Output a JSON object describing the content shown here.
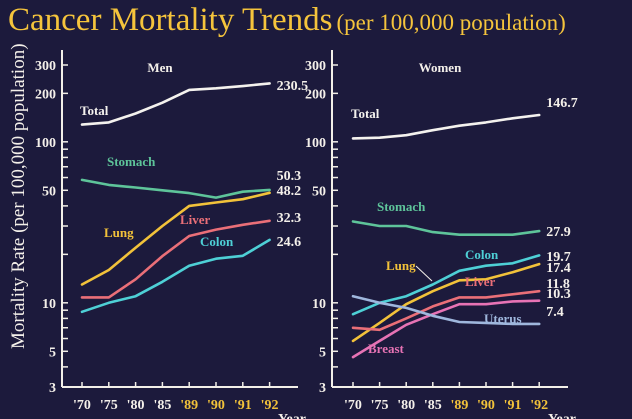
{
  "title": "Cancer Mortality Trends",
  "subtitle": "(per 100,000 population)",
  "chart_data": [
    {
      "type": "line",
      "title": "Men",
      "xlabel": "Year",
      "ylabel": "Mortality Rate (per 100,000 population)",
      "yscale": "log",
      "ylim": [
        3,
        300
      ],
      "yticks": [
        300,
        200,
        100,
        50,
        10,
        5,
        3
      ],
      "categories": [
        "'70",
        "'75",
        "'80",
        "'85",
        "'89",
        "'90",
        "'91",
        "'92"
      ],
      "highlight_categories": [
        "'89",
        "'90",
        "'91",
        "'92"
      ],
      "series": [
        {
          "name": "Total",
          "color": "#f4f2ee",
          "end_label": "230.5",
          "values": [
            128,
            132,
            150,
            175,
            210,
            215,
            222,
            230.5
          ]
        },
        {
          "name": "Stomach",
          "color": "#5ec49a",
          "end_label": "50.3",
          "values": [
            58,
            54,
            52,
            50,
            48,
            45,
            49,
            50.3
          ]
        },
        {
          "name": "Lung",
          "color": "#f2c23a",
          "end_label": "48.2",
          "values": [
            13,
            16,
            22,
            30,
            40,
            42,
            44,
            48.2
          ]
        },
        {
          "name": "Liver",
          "color": "#ea6f78",
          "end_label": "32.3",
          "values": [
            10.8,
            10.8,
            14,
            19.5,
            26,
            28.5,
            30.5,
            32.3
          ]
        },
        {
          "name": "Colon",
          "color": "#4ed0d6",
          "end_label": "24.6",
          "values": [
            8.8,
            10,
            11,
            13.5,
            17,
            18.8,
            19.6,
            24.6
          ]
        }
      ]
    },
    {
      "type": "line",
      "title": "Women",
      "xlabel": "Year",
      "ylabel": "Mortality Rate (per 100,000 population)",
      "yscale": "log",
      "ylim": [
        3,
        300
      ],
      "yticks": [
        300,
        200,
        100,
        50,
        10,
        5,
        3
      ],
      "categories": [
        "'70",
        "'75",
        "'80",
        "'85",
        "'89",
        "'90",
        "'91",
        "'92"
      ],
      "highlight_categories": [
        "'89",
        "'90",
        "'91",
        "'92"
      ],
      "series": [
        {
          "name": "Total",
          "color": "#f4f2ee",
          "end_label": "146.7",
          "values": [
            105,
            106,
            110,
            118,
            126,
            132,
            140,
            146.7
          ]
        },
        {
          "name": "Stomach",
          "color": "#5ec49a",
          "end_label": "27.9",
          "values": [
            32,
            30,
            30,
            27.5,
            26.5,
            26.5,
            26.5,
            27.9
          ]
        },
        {
          "name": "Colon",
          "color": "#4ed0d6",
          "end_label": "19.7",
          "values": [
            8.5,
            10,
            11,
            13,
            15.8,
            17,
            17.6,
            19.7
          ]
        },
        {
          "name": "Lung",
          "color": "#f2c23a",
          "end_label": "17.4",
          "values": [
            5.8,
            7.5,
            9.8,
            11.8,
            13.8,
            14,
            15.5,
            17.4
          ]
        },
        {
          "name": "Liver",
          "color": "#ea6f78",
          "end_label": "11.8",
          "values": [
            7,
            6.8,
            8,
            9.5,
            10.8,
            10.8,
            11.3,
            11.8
          ]
        },
        {
          "name": "Breast",
          "color": "#e773b5",
          "end_label": "10.3",
          "values": [
            4.6,
            5.8,
            7.3,
            8.5,
            9.8,
            9.8,
            10.2,
            10.3
          ]
        },
        {
          "name": "Uterus",
          "color": "#9fb7dd",
          "end_label": "7.4",
          "values": [
            11,
            10,
            9.3,
            8.3,
            7.6,
            7.5,
            7.4,
            7.4
          ]
        }
      ]
    }
  ]
}
